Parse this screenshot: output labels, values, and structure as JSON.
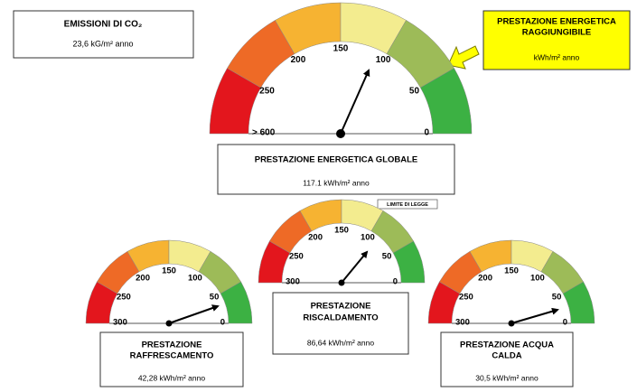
{
  "co2": {
    "title": "EMISSIONI DI CO₂",
    "value": "23,6  kG/m² anno"
  },
  "target": {
    "title": [
      "PRESTAZIONE ENERGETICA",
      "RAGGIUNGIBILE"
    ],
    "unit": "kWh/m² anno"
  },
  "legal_limit": "LIMITE DI LEGGE",
  "gauges": [
    {
      "ticks": [
        "> 600",
        "250",
        "200",
        "150",
        "100",
        "50",
        "0"
      ],
      "title": [
        "PRESTAZIONE ENERGETICA GLOBALE"
      ],
      "value": "117.1 kWh/m² anno"
    },
    {
      "ticks": [
        "300",
        "250",
        "200",
        "150",
        "100",
        "50",
        "0"
      ],
      "title": [
        "PRESTAZIONE",
        "RAFFRESCAMENTO"
      ],
      "value": "42,28 kWh/m² anno"
    },
    {
      "ticks": [
        "300",
        "250",
        "200",
        "150",
        "100",
        "50",
        "0"
      ],
      "title": [
        "PRESTAZIONE",
        "RISCALDAMENTO"
      ],
      "value": "86,64 kWh/m² anno"
    },
    {
      "ticks": [
        "300",
        "250",
        "200",
        "150",
        "100",
        "50",
        "0"
      ],
      "title": [
        "PRESTAZIONE ACQUA",
        "CALDA"
      ],
      "value": "30,5 kWh/m² anno"
    }
  ]
}
